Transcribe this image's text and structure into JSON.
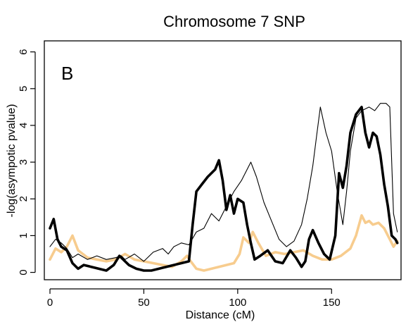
{
  "chart_data": {
    "type": "line",
    "title": "Chromosome 7 SNP",
    "panel_label": "B",
    "xlabel": "Distance (cM)",
    "ylabel": "-log(asympotic pvalue)",
    "xlim": [
      -3,
      187
    ],
    "ylim": [
      -0.2,
      6.3
    ],
    "x_ticks": [
      0,
      50,
      100,
      150
    ],
    "y_ticks": [
      0,
      1,
      2,
      3,
      4,
      5,
      6
    ],
    "grid": false,
    "series": [
      {
        "color": "#000000",
        "style": "thin",
        "x": [
          0,
          3,
          6,
          9,
          12,
          15,
          20,
          25,
          30,
          35,
          38,
          40,
          45,
          50,
          55,
          60,
          63,
          66,
          70,
          74,
          78,
          82,
          86,
          90,
          94,
          98,
          102,
          105,
          107,
          110,
          114,
          118,
          122,
          126,
          130,
          134,
          137,
          140,
          142,
          144,
          147,
          150,
          153,
          156,
          158,
          160,
          163,
          166,
          170,
          173,
          176,
          179,
          181,
          183,
          185
        ],
        "y": [
          0.7,
          0.9,
          0.8,
          0.65,
          0.4,
          0.5,
          0.35,
          0.45,
          0.35,
          0.4,
          0.45,
          0.35,
          0.5,
          0.3,
          0.55,
          0.65,
          0.5,
          0.7,
          0.8,
          0.75,
          1.1,
          1.2,
          1.6,
          1.4,
          1.8,
          2.2,
          2.5,
          2.8,
          3.0,
          2.6,
          1.9,
          1.4,
          0.9,
          0.7,
          0.85,
          1.3,
          2.0,
          2.9,
          3.7,
          4.5,
          3.8,
          3.3,
          2.2,
          1.3,
          2.2,
          3.3,
          4.2,
          4.4,
          4.5,
          4.4,
          4.6,
          4.6,
          4.5,
          1.6,
          1.1
        ]
      },
      {
        "color": "#000000",
        "style": "thick",
        "x": [
          0,
          2,
          4,
          6,
          9,
          12,
          15,
          18,
          22,
          26,
          30,
          34,
          37,
          39,
          42,
          46,
          50,
          54,
          58,
          62,
          66,
          70,
          74,
          76,
          78,
          81,
          84,
          88,
          90,
          92,
          94,
          96,
          98,
          100,
          103,
          105,
          107,
          109,
          112,
          116,
          120,
          124,
          128,
          131,
          134,
          136,
          138,
          140,
          143,
          146,
          149,
          152,
          154,
          156,
          158,
          160,
          163,
          166,
          168,
          170,
          172,
          174,
          176,
          178,
          180,
          182,
          184,
          185
        ],
        "y": [
          1.2,
          1.45,
          0.9,
          0.7,
          0.6,
          0.25,
          0.1,
          0.2,
          0.15,
          0.1,
          0.05,
          0.2,
          0.45,
          0.35,
          0.2,
          0.1,
          0.05,
          0.05,
          0.1,
          0.15,
          0.2,
          0.25,
          0.3,
          1.3,
          2.2,
          2.4,
          2.6,
          2.8,
          3.05,
          2.5,
          1.7,
          2.1,
          1.6,
          2.0,
          1.9,
          1.3,
          0.8,
          0.35,
          0.45,
          0.6,
          0.3,
          0.25,
          0.6,
          0.4,
          0.15,
          0.3,
          0.9,
          1.15,
          0.8,
          0.5,
          0.35,
          1.0,
          2.7,
          2.3,
          2.9,
          3.8,
          4.3,
          4.5,
          3.8,
          3.4,
          3.8,
          3.7,
          3.2,
          2.4,
          1.8,
          1.0,
          0.9,
          0.8
        ]
      },
      {
        "color": "#f7cc8e",
        "style": "thick",
        "x": [
          0,
          3,
          6,
          9,
          12,
          15,
          20,
          25,
          30,
          35,
          40,
          45,
          50,
          55,
          60,
          65,
          70,
          73,
          75,
          78,
          82,
          86,
          90,
          94,
          98,
          101,
          103,
          106,
          108,
          111,
          115,
          120,
          125,
          130,
          135,
          140,
          145,
          150,
          155,
          160,
          163,
          166,
          168,
          170,
          172,
          175,
          178,
          181,
          183,
          185
        ],
        "y": [
          0.35,
          0.65,
          0.55,
          0.7,
          1.0,
          0.6,
          0.4,
          0.35,
          0.3,
          0.35,
          0.5,
          0.35,
          0.3,
          0.25,
          0.2,
          0.15,
          0.3,
          0.45,
          0.3,
          0.1,
          0.05,
          0.1,
          0.15,
          0.2,
          0.25,
          0.5,
          0.95,
          0.8,
          1.1,
          0.8,
          0.45,
          0.55,
          0.5,
          0.55,
          0.6,
          0.45,
          0.35,
          0.35,
          0.45,
          0.65,
          1.0,
          1.55,
          1.35,
          1.4,
          1.3,
          1.35,
          1.2,
          0.9,
          0.7,
          0.85
        ]
      }
    ]
  }
}
